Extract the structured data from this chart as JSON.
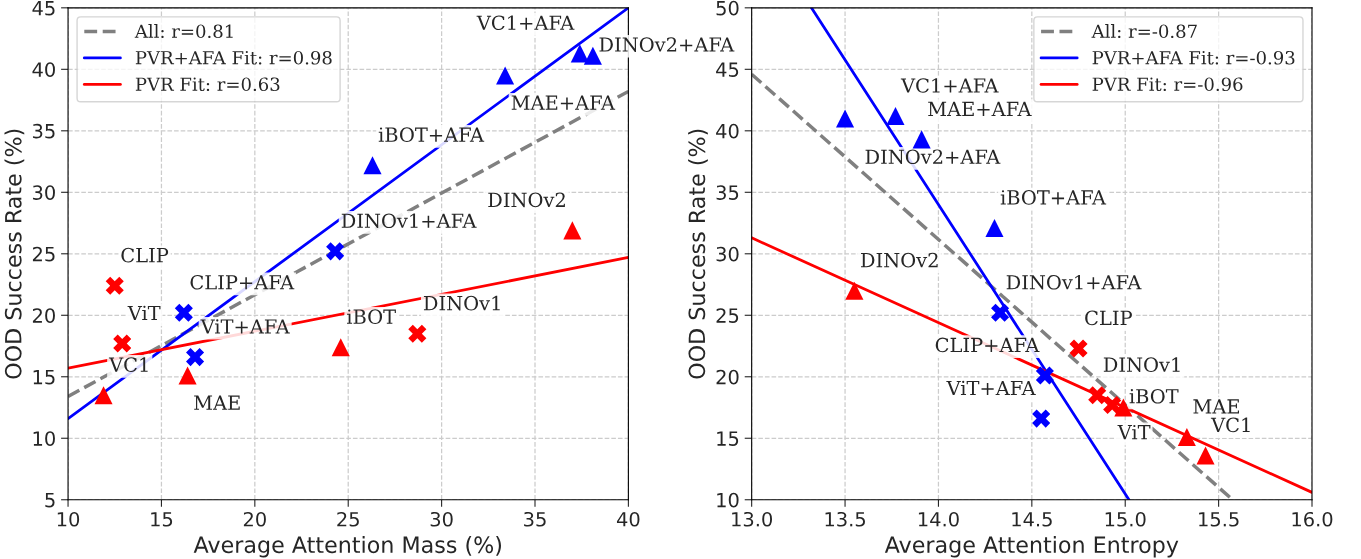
{
  "chart_data": [
    {
      "type": "scatter",
      "xlabel": "Average Attention Mass (%)",
      "ylabel": "OOD Success Rate (%)",
      "xlim": [
        10,
        40
      ],
      "ylim": [
        5,
        45
      ],
      "xticks": [
        10,
        15,
        20,
        25,
        30,
        35,
        40
      ],
      "yticks": [
        5,
        10,
        15,
        20,
        25,
        30,
        35,
        40,
        45
      ],
      "grid": true,
      "legend": "top left",
      "series": [
        {
          "type": "scatter",
          "color": "#ff0000",
          "marker": "triangle",
          "x": [
            11.9,
            16.4,
            24.6,
            37.0
          ],
          "values": [
            13.5,
            15.1,
            17.4,
            26.9
          ]
        },
        {
          "type": "scatter",
          "color": "#ff0000",
          "marker": "cross",
          "x": [
            12.5,
            12.9,
            28.7
          ],
          "values": [
            22.4,
            17.7,
            18.5
          ]
        },
        {
          "type": "scatter",
          "color": "#0000ff",
          "marker": "triangle",
          "x": [
            26.3,
            33.4,
            37.4,
            38.1
          ],
          "values": [
            32.2,
            39.5,
            41.3,
            41.1
          ]
        },
        {
          "type": "scatter",
          "color": "#0000ff",
          "marker": "cross",
          "x": [
            16.2,
            16.8,
            24.3
          ],
          "values": [
            20.2,
            16.6,
            25.2
          ]
        },
        {
          "type": "line",
          "name": "All: r=0.81",
          "color": "#808080",
          "line_style": "dashed",
          "x": [
            10,
            40
          ],
          "values": [
            13.4,
            38.2
          ]
        },
        {
          "type": "line",
          "name": "PVR+AFA Fit: r=0.98",
          "color": "#0000ff",
          "line_style": "solid",
          "x": [
            10,
            40
          ],
          "values": [
            11.6,
            45
          ]
        },
        {
          "type": "line",
          "name": "PVR Fit: r=0.63",
          "color": "#ff0000",
          "line_style": "solid",
          "x": [
            10,
            40
          ],
          "values": [
            15.7,
            24.7
          ]
        }
      ],
      "annotations": [
        {
          "text": "VC1+AFA",
          "x": 37.4,
          "y": 41.3
        },
        {
          "text": "DINOv2+AFA",
          "x": 38.1,
          "y": 41.1
        },
        {
          "text": "MAE+AFA",
          "x": 33.4,
          "y": 39.5
        },
        {
          "text": "iBOT+AFA",
          "x": 26.3,
          "y": 32.2
        },
        {
          "text": "DINOv2",
          "x": 37.0,
          "y": 26.9
        },
        {
          "text": "DINOv1+AFA",
          "x": 24.3,
          "y": 25.2
        },
        {
          "text": "CLIP",
          "x": 12.5,
          "y": 22.4
        },
        {
          "text": "CLIP+AFA",
          "x": 16.2,
          "y": 20.2
        },
        {
          "text": "DINOv1",
          "x": 28.7,
          "y": 18.5
        },
        {
          "text": "ViT",
          "x": 12.9,
          "y": 17.7
        },
        {
          "text": "iBOT",
          "x": 24.6,
          "y": 17.4
        },
        {
          "text": "ViT+AFA",
          "x": 16.8,
          "y": 16.6
        },
        {
          "text": "MAE",
          "x": 16.4,
          "y": 15.1
        },
        {
          "text": "VC1",
          "x": 11.9,
          "y": 13.5
        }
      ]
    },
    {
      "type": "scatter",
      "xlabel": "Average Attention Entropy",
      "ylabel": "OOD Success Rate (%)",
      "xlim": [
        13.0,
        16.0
      ],
      "ylim": [
        10,
        50
      ],
      "xticks": [
        {
          "value": 13.0,
          "label": "13.0"
        },
        {
          "value": 13.5,
          "label": "13.5"
        },
        {
          "value": 14.0,
          "label": "14.0"
        },
        {
          "value": 14.5,
          "label": "14.5"
        },
        {
          "value": 15.0,
          "label": "15.0"
        },
        {
          "value": 15.5,
          "label": "15.5"
        },
        {
          "value": 16.0,
          "label": "16.0"
        }
      ],
      "yticks": [
        10,
        15,
        20,
        25,
        30,
        35,
        40,
        45,
        50
      ],
      "grid": true,
      "legend": "top right",
      "series": [
        {
          "type": "scatter",
          "color": "#ff0000",
          "marker": "triangle",
          "x": [
            13.55,
            14.99,
            15.33,
            15.43
          ],
          "values": [
            27.0,
            17.5,
            15.1,
            13.6
          ]
        },
        {
          "type": "scatter",
          "color": "#ff0000",
          "marker": "cross",
          "x": [
            14.75,
            14.85,
            14.93
          ],
          "values": [
            22.3,
            18.5,
            17.7
          ]
        },
        {
          "type": "scatter",
          "color": "#0000ff",
          "marker": "triangle",
          "x": [
            13.5,
            13.77,
            13.91,
            14.3
          ],
          "values": [
            41.0,
            41.2,
            39.3,
            32.1
          ]
        },
        {
          "type": "scatter",
          "color": "#0000ff",
          "marker": "cross",
          "x": [
            14.33,
            14.57,
            14.55
          ],
          "values": [
            25.2,
            20.1,
            16.6
          ]
        },
        {
          "type": "line",
          "name": "All: r=-0.87",
          "color": "#808080",
          "line_style": "dashed",
          "x": [
            13.0,
            15.56
          ],
          "values": [
            44.6,
            10.2
          ]
        },
        {
          "type": "line",
          "name": "PVR+AFA Fit: r=-0.93",
          "color": "#0000ff",
          "line_style": "solid",
          "x": [
            13.32,
            15.02
          ],
          "values": [
            50,
            10
          ]
        },
        {
          "type": "line",
          "name": "PVR Fit: r=-0.96",
          "color": "#ff0000",
          "line_style": "solid",
          "x": [
            13.0,
            16.0
          ],
          "values": [
            31.3,
            10.6
          ]
        }
      ],
      "annotations": [
        {
          "text": "VC1+AFA",
          "x": 13.77,
          "y": 41.2
        },
        {
          "text": "DINOv2+AFA",
          "x": 13.5,
          "y": 41.0
        },
        {
          "text": "MAE+AFA",
          "x": 13.91,
          "y": 39.3
        },
        {
          "text": "iBOT+AFA",
          "x": 14.3,
          "y": 32.1
        },
        {
          "text": "DINOv2",
          "x": 13.55,
          "y": 27.0
        },
        {
          "text": "DINOv1+AFA",
          "x": 14.33,
          "y": 25.2
        },
        {
          "text": "CLIP",
          "x": 14.75,
          "y": 22.3
        },
        {
          "text": "CLIP+AFA",
          "x": 14.57,
          "y": 20.1
        },
        {
          "text": "DINOv1",
          "x": 14.85,
          "y": 18.5
        },
        {
          "text": "ViT",
          "x": 14.93,
          "y": 17.7
        },
        {
          "text": "iBOT",
          "x": 14.99,
          "y": 17.5
        },
        {
          "text": "ViT+AFA",
          "x": 14.55,
          "y": 16.6
        },
        {
          "text": "MAE",
          "x": 15.33,
          "y": 15.1
        },
        {
          "text": "VC1",
          "x": 15.43,
          "y": 13.6
        }
      ]
    }
  ]
}
